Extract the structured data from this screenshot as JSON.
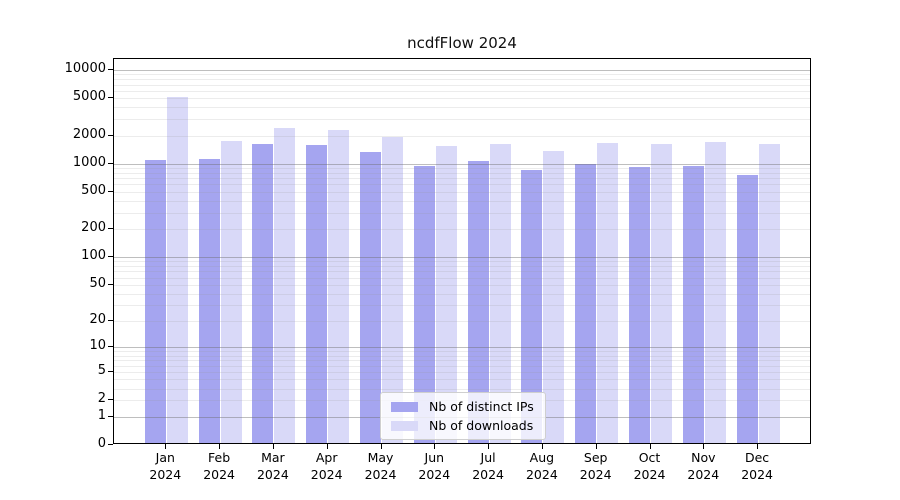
{
  "title": "ncdfFlow 2024",
  "chart_data": {
    "type": "bar",
    "title": "ncdfFlow 2024",
    "yscale": "log1p",
    "grid": true,
    "legend_position": "lower center",
    "ylim": [
      0,
      13000
    ],
    "y_ticks": [
      10000,
      5000,
      2000,
      1000,
      500,
      200,
      100,
      50,
      20,
      10,
      5,
      2,
      1,
      0
    ],
    "categories": [
      "Jan",
      "Feb",
      "Mar",
      "Apr",
      "May",
      "Jun",
      "Jul",
      "Aug",
      "Sep",
      "Oct",
      "Nov",
      "Dec"
    ],
    "year": "2024",
    "series": [
      {
        "name": "Nb of distinct IPs",
        "color": "#a5a5f0",
        "values": [
          1090,
          1120,
          1640,
          1600,
          1320,
          940,
          1060,
          850,
          990,
          930,
          950,
          760
        ]
      },
      {
        "name": "Nb of downloads",
        "color": "#d9d9f8",
        "values": [
          5200,
          1750,
          2420,
          2310,
          1950,
          1540,
          1640,
          1380,
          1680,
          1610,
          1690,
          1640
        ]
      }
    ]
  }
}
